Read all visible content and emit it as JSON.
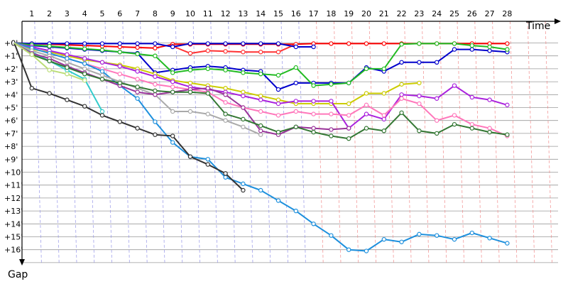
{
  "chart_data": {
    "type": "line",
    "xlabel": "Time",
    "ylabel": "Gap",
    "x_ticks": [
      "1",
      "2",
      "3",
      "4",
      "5",
      "6",
      "7",
      "8",
      "9",
      "10",
      "11",
      "12",
      "13",
      "14",
      "15",
      "16",
      "17",
      "18",
      "19",
      "20",
      "21",
      "22",
      "23",
      "24",
      "25",
      "26",
      "27",
      "28"
    ],
    "y_ticks": [
      "+0'",
      "+1'",
      "+2'",
      "+3'",
      "+4'",
      "+5'",
      "+6'",
      "+7'",
      "+8'",
      "+9'",
      "+10'",
      "+11'",
      "+12'",
      "+13'",
      "+14'",
      "+15'",
      "+16'"
    ],
    "x_range": [
      0,
      30
    ],
    "y_range": [
      0,
      17
    ],
    "grid": "horizontal",
    "series": [
      {
        "color": "#ff0000",
        "values": [
          0,
          0.05,
          0.1,
          0.15,
          0.2,
          0.25,
          0.3,
          0.35,
          0.4,
          0.1,
          0.1,
          0.1,
          0.1,
          0.1,
          0.1,
          0.1,
          0.1,
          0.05,
          0.05,
          0.05,
          0.05,
          0.05,
          0.05,
          0.05,
          0.05,
          0.05,
          0.05,
          0.05,
          0.05
        ]
      },
      {
        "color": "#ff3333",
        "values": [
          null,
          null,
          null,
          null,
          null,
          null,
          null,
          null,
          null,
          0.25,
          0.8,
          0.6,
          0.65,
          0.7,
          0.7,
          0.7,
          0.1
        ]
      },
      {
        "color": "#0000cc",
        "values": [
          0,
          0.05,
          0.05,
          0.05,
          0.05,
          0.05,
          0.05,
          0.05,
          0.05,
          0.3,
          0.05,
          0.05,
          0.05,
          0.05,
          0.05,
          0.05,
          0.3,
          0.3
        ]
      },
      {
        "color": "#0000cc",
        "values": [
          0,
          0.2,
          0.3,
          0.4,
          0.5,
          0.6,
          0.7,
          0.8,
          2.3,
          2.1,
          1.9,
          1.8,
          1.9,
          2.1,
          2.2,
          3.6,
          3.1,
          3.1,
          3.1,
          3.1,
          1.9,
          2.2,
          1.5,
          1.5,
          1.5,
          0.5,
          0.5,
          0.6,
          0.7
        ]
      },
      {
        "color": "#22bb22",
        "values": [
          0,
          0.15,
          0.25,
          0.35,
          0.45,
          0.55,
          0.7,
          0.85,
          1.0,
          2.3,
          2.1,
          2.0,
          2.1,
          2.3,
          2.4,
          2.5,
          1.9,
          3.3,
          3.2,
          3.1,
          2.0,
          2.0,
          0.1,
          0.05,
          0.05,
          0.05,
          0.2,
          0.3,
          0.5
        ]
      },
      {
        "color": "#cccc00",
        "values": [
          0,
          0.5,
          0.7,
          1.0,
          1.3,
          1.5,
          1.7,
          2.0,
          2.4,
          2.9,
          3.1,
          3.3,
          3.5,
          3.8,
          4.1,
          4.4,
          4.7,
          4.7,
          4.7,
          4.7,
          3.9,
          3.9,
          3.2,
          3.1
        ]
      },
      {
        "color": "#aa22dd",
        "values": [
          0,
          0.3,
          0.6,
          0.9,
          1.2,
          1.5,
          1.8,
          2.2,
          2.6,
          3.0,
          3.4,
          3.6,
          3.8,
          4.1,
          4.4,
          4.7,
          4.5,
          4.5,
          4.5,
          6.6,
          5.5,
          5.9,
          4.0,
          4.1,
          4.3,
          3.3,
          4.2,
          4.4,
          4.8
        ]
      },
      {
        "color": "#ff77bb",
        "values": [
          0,
          0.4,
          0.8,
          1.2,
          1.6,
          2.0,
          2.4,
          2.8,
          3.2,
          3.4,
          3.6,
          3.8,
          4.6,
          5.0,
          5.3,
          5.6,
          5.3,
          5.5,
          5.5,
          5.6,
          4.8,
          5.6,
          4.3,
          4.7,
          6.0,
          5.6,
          6.3,
          6.6,
          7.2
        ]
      },
      {
        "color": "#33cccc",
        "values": [
          0,
          0.7,
          1.4,
          2.1,
          2.8,
          5.3
        ]
      },
      {
        "color": "#1e90dd",
        "values": [
          0,
          0.4,
          0.8,
          1.2,
          1.6,
          2.2,
          3.3,
          4.3,
          6.1,
          7.7,
          8.8,
          9.0,
          10.4,
          10.9,
          11.4,
          12.2,
          13.0,
          14.0,
          14.9,
          16.0,
          16.1,
          15.2,
          15.4,
          14.8,
          14.9,
          15.2,
          14.7,
          15.1,
          15.5
        ]
      },
      {
        "color": "#333333",
        "values": [
          0,
          3.5,
          3.9,
          4.4,
          4.9,
          5.6,
          6.1,
          6.6,
          7.1,
          7.2,
          8.8,
          9.4,
          10.1,
          11.4
        ]
      },
      {
        "color": "#aaaaaa",
        "values": [
          0,
          0.6,
          1.0,
          1.5,
          2.0,
          2.5,
          3.0,
          3.5,
          4.0,
          5.3,
          5.3,
          5.5,
          6.0,
          6.5,
          7.1
        ]
      },
      {
        "color": "#993399",
        "values": [
          0,
          0.8,
          1.2,
          1.8,
          2.3,
          2.8,
          3.3,
          3.8,
          4.0,
          3.8,
          3.6,
          3.5,
          4.0,
          5.0,
          6.8,
          7.1,
          6.5,
          6.6,
          6.7,
          6.6
        ]
      },
      {
        "color": "#337733",
        "values": [
          0,
          0.9,
          1.4,
          1.9,
          2.4,
          2.8,
          3.1,
          3.4,
          3.7,
          3.8,
          3.8,
          3.9,
          5.5,
          5.9,
          6.4,
          6.9,
          6.5,
          6.9,
          7.2,
          7.4,
          6.6,
          6.8,
          5.4,
          6.8,
          7.0,
          6.3,
          6.6,
          6.9,
          7.1
        ]
      },
      {
        "color": "#bbdd77",
        "values": [
          0,
          0.9,
          2.1,
          2.4,
          2.9
        ]
      }
    ]
  }
}
